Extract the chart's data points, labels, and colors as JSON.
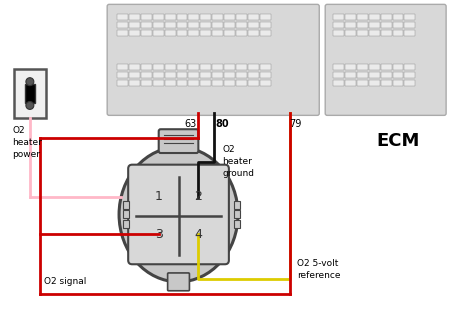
{
  "bg_color": "#ffffff",
  "ecm_label": "ECM",
  "ecm_color": "#d8d8d8",
  "ecm_border": "#aaaaaa",
  "pin_label_63": "63",
  "pin_label_80": "80",
  "pin_label_79": "79",
  "label_pink": "O2\nheater\npower",
  "label_black": "O2\nheater\nground",
  "label_red": "O2 signal",
  "label_yellow": "O2 5-volt\nreference",
  "red_wire": "#cc0000",
  "yellow_wire": "#ddcc00",
  "pink_wire": "#ffb8c8",
  "black_wire": "#111111",
  "connector_face": "#c8c8c8",
  "connector_inner": "#d8d8d8",
  "connector_border": "#444444",
  "pwr_box_face": "#f0f0f0",
  "pwr_box_border": "#555555"
}
